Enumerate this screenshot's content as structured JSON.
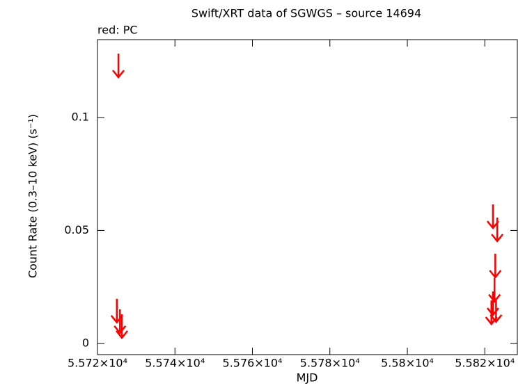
{
  "chart_data": {
    "type": "upper-limit-scatter",
    "title": "Swift/XRT data of SGWGS – source 14694",
    "legend_text": "red: PC",
    "x_label": "MJD",
    "y_label": "Count Rate (0.3–10 keV) (s⁻¹)",
    "xlim": [
      55720,
      55828.4
    ],
    "ylim": [
      -0.005,
      0.1345
    ],
    "xticks": [
      {
        "value": 55720,
        "label": "5.572×10⁴"
      },
      {
        "value": 55740,
        "label": "5.574×10⁴"
      },
      {
        "value": 55760,
        "label": "5.576×10⁴"
      },
      {
        "value": 55780,
        "label": "5.578×10⁴"
      },
      {
        "value": 55800,
        "label": "5.58×10⁴"
      },
      {
        "value": 55820,
        "label": "5.582×10⁴"
      }
    ],
    "yticks": [
      0,
      0.05,
      0.1
    ],
    "series": [
      {
        "color": "#ff0000",
        "x": [
          55725.4,
          55725.0,
          55725.8,
          55726.3,
          55822.1,
          55823.2,
          55822.7,
          55822.5,
          55822.1,
          55822.9,
          55821.7
        ],
        "values": [
          0.1283,
          0.0197,
          0.0151,
          0.0129,
          0.0615,
          0.0557,
          0.0397,
          0.029,
          0.023,
          0.02,
          0.019
        ]
      }
    ]
  }
}
